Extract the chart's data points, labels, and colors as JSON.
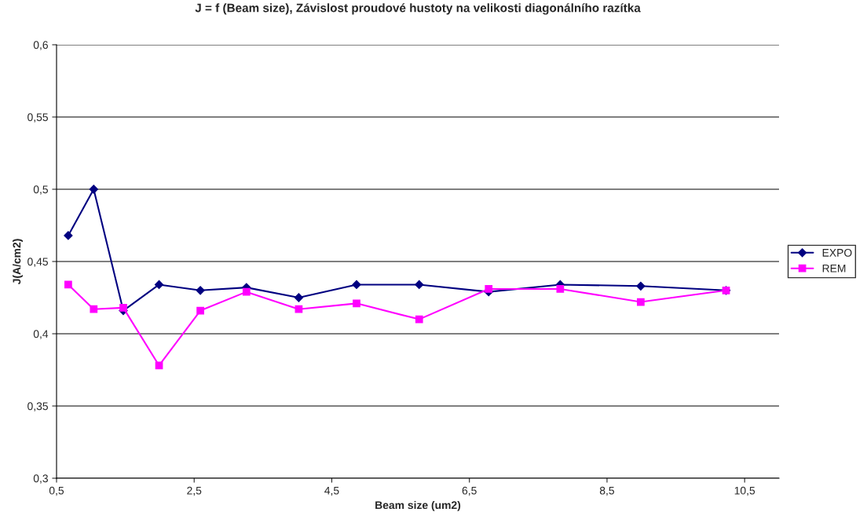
{
  "chart_data": {
    "type": "line",
    "title": "J = f (Beam size), Závislost proudové hustoty na velikosti diagonálního razítka",
    "xlabel": "Beam size (um2)",
    "ylabel": "J(A/cm2)",
    "x": [
      0.67,
      1.04,
      1.47,
      1.99,
      2.59,
      3.26,
      4.02,
      4.86,
      5.77,
      6.78,
      7.82,
      8.99,
      10.23
    ],
    "series": [
      {
        "name": "EXPO",
        "color": "#000080",
        "marker": "diamond",
        "values": [
          0.468,
          0.5,
          0.416,
          0.434,
          0.43,
          0.432,
          0.425,
          0.434,
          0.434,
          0.429,
          0.434,
          0.433,
          0.43
        ]
      },
      {
        "name": "REM",
        "color": "#ff00ff",
        "marker": "square",
        "values": [
          0.434,
          0.417,
          0.418,
          0.378,
          0.416,
          0.429,
          0.417,
          0.421,
          0.41,
          0.431,
          0.431,
          0.422,
          0.43
        ]
      }
    ],
    "xlim": [
      0.5,
      11.0
    ],
    "xticks": [
      {
        "value": 0.5,
        "label": "0,5"
      },
      {
        "value": 2.5,
        "label": "2,5"
      },
      {
        "value": 4.5,
        "label": "4,5"
      },
      {
        "value": 6.5,
        "label": "6,5"
      },
      {
        "value": 8.5,
        "label": "8,5"
      },
      {
        "value": 10.5,
        "label": "10,5"
      }
    ],
    "ylim": [
      0.3,
      0.6
    ],
    "yticks": [
      {
        "value": 0.3,
        "label": "0,3"
      },
      {
        "value": 0.35,
        "label": "0,35"
      },
      {
        "value": 0.4,
        "label": "0,4"
      },
      {
        "value": 0.45,
        "label": "0,45"
      },
      {
        "value": 0.5,
        "label": "0,5"
      },
      {
        "value": 0.55,
        "label": "0,55"
      },
      {
        "value": 0.6,
        "label": "0,6"
      }
    ],
    "grid": "y",
    "legend": "right",
    "line_style": "solid"
  }
}
